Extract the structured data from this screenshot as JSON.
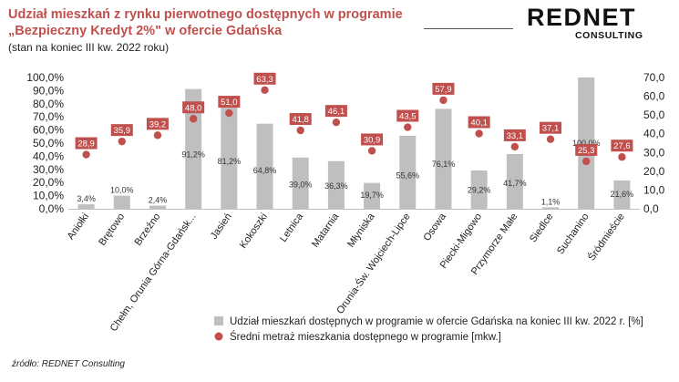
{
  "title_line1": "Udział mieszkań z rynku pierwotnego dostępnych w programie",
  "title_line2": "„Bezpieczny Kredyt 2%\" w ofercie Gdańska",
  "subtitle": "(stan na koniec III kw. 2022 roku)",
  "logo": {
    "main": "REDNET",
    "sub": "CONSULTING"
  },
  "source": "źródło: REDNET Consulting",
  "colors": {
    "bar": "#bfbfbf",
    "dot": "#c0504d",
    "label_box": "#c0504d",
    "title": "#c0504d"
  },
  "chart_data": {
    "type": "bar",
    "categories": [
      "Aniołki",
      "Brętowo",
      "Brzeźno",
      "Chełm, Orunia Górna-Gdańsk...",
      "Jasień",
      "Kokoszki",
      "Letnica",
      "Matarnia",
      "Młyniska",
      "Orunia-Św. Wojciech-Lipce",
      "Osowa",
      "Piecki-Migowo",
      "Przymorze Małe",
      "Siedlce",
      "Suchanino",
      "Śródmieście"
    ],
    "series": [
      {
        "name": "Udział mieszkań dostępnych w programie w ofercie Gdańska na koniec III kw. 2022 r. [%]",
        "type": "bar",
        "axis": "left",
        "values": [
          3.4,
          10.0,
          2.4,
          91.2,
          81.2,
          64.8,
          39.0,
          36.3,
          19.7,
          55.6,
          76.1,
          29.2,
          41.7,
          1.1,
          100.0,
          21.6
        ],
        "labels": [
          "3,4%",
          "10,0%",
          "2,4%",
          "91,2%",
          "81,2%",
          "64,8%",
          "39,0%",
          "36,3%",
          "19,7%",
          "55,6%",
          "76,1%",
          "29,2%",
          "41,7%",
          "1,1%",
          "100,0%",
          "21,6%"
        ]
      },
      {
        "name": "Średni metraż mieszkania dostępnego w programie [mkw.]",
        "type": "scatter",
        "axis": "right",
        "values": [
          28.9,
          35.9,
          39.2,
          48.0,
          51.0,
          63.3,
          41.8,
          46.1,
          30.9,
          43.5,
          57.9,
          40.1,
          33.1,
          37.1,
          25.3,
          27.6
        ],
        "labels": [
          "28,9",
          "35,9",
          "39,2",
          "48,0",
          "51,0",
          "63,3",
          "41,8",
          "46,1",
          "30,9",
          "43,5",
          "57,9",
          "40,1",
          "33,1",
          "37,1",
          "25,3",
          "27,6"
        ]
      }
    ],
    "y_left": {
      "lim": [
        0,
        100
      ],
      "ticks": [
        "0,0%",
        "10,0%",
        "20,0%",
        "30,0%",
        "40,0%",
        "50,0%",
        "60,0%",
        "70,0%",
        "80,0%",
        "90,0%",
        "100,0%"
      ]
    },
    "y_right": {
      "lim": [
        0,
        70
      ],
      "ticks": [
        "0,0",
        "10,0",
        "20,0",
        "30,0",
        "40,0",
        "50,0",
        "60,0",
        "70,0"
      ]
    },
    "legend_position": "bottom",
    "grid": false
  }
}
